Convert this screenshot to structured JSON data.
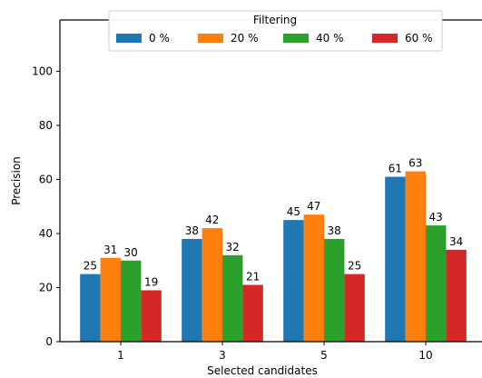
{
  "chart_data": {
    "type": "bar",
    "categories": [
      "1",
      "3",
      "5",
      "10"
    ],
    "series": [
      {
        "name": "0 %",
        "color": "#1f77b4",
        "values": [
          25,
          38,
          45,
          61
        ]
      },
      {
        "name": "20 %",
        "color": "#ff7f0e",
        "values": [
          31,
          42,
          47,
          63
        ]
      },
      {
        "name": "40 %",
        "color": "#2ca02c",
        "values": [
          30,
          32,
          38,
          43
        ]
      },
      {
        "name": "60 %",
        "color": "#d62728",
        "values": [
          19,
          21,
          25,
          34
        ]
      }
    ],
    "xlabel": "Selected candidates",
    "ylabel": "Precision",
    "ylim": [
      0,
      119
    ],
    "yticks": [
      0,
      20,
      40,
      60,
      80,
      100
    ],
    "legend": {
      "title": "Filtering",
      "placement": "top-center",
      "columns": 4
    },
    "data_labels": true,
    "grid": false
  }
}
